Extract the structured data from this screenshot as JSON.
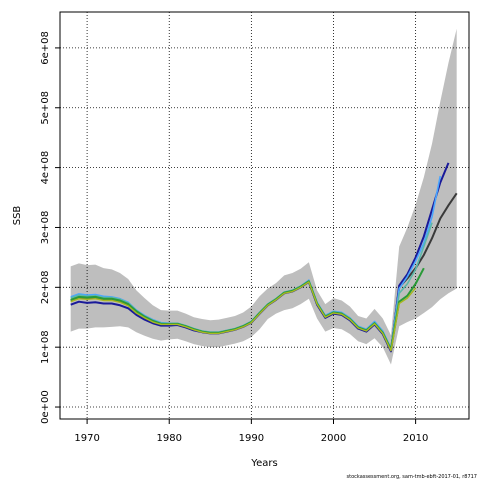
{
  "chart_data": {
    "type": "line",
    "title": "",
    "xlabel": "Years",
    "ylabel": "SSB",
    "xlim": [
      1966.7,
      2016.5
    ],
    "ylim": [
      -20000000,
      660000000
    ],
    "x_ticks": [
      1970,
      1980,
      1990,
      2000,
      2010
    ],
    "x_tick_labels": [
      "1970",
      "1980",
      "1990",
      "2000",
      "2010"
    ],
    "y_ticks": [
      0,
      100000000,
      200000000,
      300000000,
      400000000,
      500000000,
      600000000
    ],
    "y_tick_labels": [
      "0e+00",
      "1e+08",
      "2e+08",
      "3e+08",
      "4e+08",
      "5e+08",
      "6e+08"
    ],
    "grid": true,
    "grid_style": "dotted",
    "band": {
      "color": "#bebebe",
      "x": [
        1968,
        1969,
        1970,
        1971,
        1972,
        1973,
        1974,
        1975,
        1976,
        1977,
        1978,
        1979,
        1980,
        1981,
        1982,
        1983,
        1984,
        1985,
        1986,
        1987,
        1988,
        1989,
        1990,
        1991,
        1992,
        1993,
        1994,
        1995,
        1996,
        1997,
        1998,
        1999,
        2000,
        2001,
        2002,
        2003,
        2004,
        2005,
        2006,
        2007,
        2008,
        2009,
        2010,
        2011,
        2012,
        2013,
        2014,
        2015
      ],
      "upper": [
        235000000,
        240000000,
        237000000,
        238000000,
        232000000,
        230000000,
        224000000,
        214000000,
        195000000,
        182000000,
        170000000,
        162000000,
        161000000,
        161000000,
        156000000,
        150000000,
        147000000,
        145000000,
        146000000,
        149000000,
        152000000,
        158000000,
        168000000,
        185000000,
        198000000,
        207000000,
        220000000,
        224000000,
        231000000,
        242000000,
        195000000,
        172000000,
        182000000,
        178000000,
        168000000,
        152000000,
        148000000,
        164000000,
        148000000,
        120000000,
        268000000,
        300000000,
        338000000,
        384000000,
        440000000,
        510000000,
        575000000,
        632000000
      ],
      "lower": [
        126000000,
        131000000,
        131000000,
        133000000,
        133000000,
        134000000,
        135000000,
        133000000,
        125000000,
        119000000,
        114000000,
        111000000,
        113000000,
        114000000,
        110000000,
        105000000,
        102000000,
        100000000,
        100000000,
        103000000,
        106000000,
        110000000,
        117000000,
        130000000,
        147000000,
        156000000,
        162000000,
        165000000,
        172000000,
        181000000,
        148000000,
        126000000,
        132000000,
        130000000,
        122000000,
        110000000,
        105000000,
        115000000,
        100000000,
        71000000,
        135000000,
        142000000,
        148000000,
        157000000,
        167000000,
        180000000,
        190000000,
        198000000
      ]
    },
    "series": [
      {
        "color": "#3a3a3a",
        "width": 2,
        "x": [
          1968,
          1969,
          1970,
          1971,
          1972,
          1973,
          1974,
          1975,
          1976,
          1977,
          1978,
          1979,
          1980,
          1981,
          1982,
          1983,
          1984,
          1985,
          1986,
          1987,
          1988,
          1989,
          1990,
          1991,
          1992,
          1993,
          1994,
          1995,
          1996,
          1997,
          1998,
          1999,
          2000,
          2001,
          2002,
          2003,
          2004,
          2005,
          2006,
          2007,
          2008,
          2009,
          2010,
          2011,
          2012,
          2013,
          2014,
          2015
        ],
        "y": [
          178000000,
          183000000,
          182000000,
          183000000,
          180000000,
          180000000,
          177000000,
          171000000,
          159000000,
          151000000,
          144000000,
          139000000,
          139000000,
          139000000,
          135000000,
          130000000,
          126000000,
          124000000,
          124000000,
          127000000,
          130000000,
          135000000,
          142000000,
          157000000,
          171000000,
          180000000,
          191000000,
          194000000,
          201000000,
          210000000,
          172000000,
          150000000,
          157000000,
          155000000,
          146000000,
          132000000,
          127000000,
          139000000,
          124000000,
          96000000,
          200000000,
          215000000,
          232000000,
          254000000,
          282000000,
          315000000,
          337000000,
          357000000
        ]
      },
      {
        "color": "#1a1a9a",
        "width": 2,
        "x": [
          1968,
          1969,
          1970,
          1971,
          1972,
          1973,
          1974,
          1975,
          1976,
          1977,
          1978,
          1979,
          1980,
          1981,
          1982,
          1983,
          1984,
          1985,
          1986,
          1987,
          1988,
          1989,
          1990,
          1991,
          1992,
          1993,
          1994,
          1995,
          1996,
          1997,
          1998,
          1999,
          2000,
          2001,
          2002,
          2003,
          2004,
          2005,
          2006,
          2007,
          2008,
          2009,
          2010,
          2011,
          2012,
          2013,
          2014
        ],
        "y": [
          171000000,
          176000000,
          174000000,
          175000000,
          173000000,
          173000000,
          170000000,
          165000000,
          154000000,
          146000000,
          140000000,
          136000000,
          136000000,
          137000000,
          133000000,
          128000000,
          125000000,
          123000000,
          123000000,
          126000000,
          129000000,
          134000000,
          141000000,
          156000000,
          170000000,
          179000000,
          190000000,
          193000000,
          200000000,
          209000000,
          171000000,
          149000000,
          156000000,
          154000000,
          145000000,
          131000000,
          126000000,
          138000000,
          122000000,
          93000000,
          203000000,
          222000000,
          250000000,
          285000000,
          330000000,
          375000000,
          408000000
        ]
      },
      {
        "color": "#4aa6ff",
        "width": 1.6,
        "x": [
          1968,
          1969,
          1970,
          1971,
          1972,
          1973,
          1974,
          1975,
          1976,
          1977,
          1978,
          1979,
          1980,
          1981,
          1982,
          1983,
          1984,
          1985,
          1986,
          1987,
          1988,
          1989,
          1990,
          1991,
          1992,
          1993,
          1994,
          1995,
          1996,
          1997,
          1998,
          1999,
          2000,
          2001,
          2002,
          2003,
          2004,
          2005,
          2006,
          2007,
          2008,
          2009,
          2010,
          2011,
          2012,
          2013
        ],
        "y": [
          184000000,
          189000000,
          187000000,
          188000000,
          185000000,
          184000000,
          181000000,
          175000000,
          162000000,
          153000000,
          146000000,
          141000000,
          140000000,
          140000000,
          136000000,
          131000000,
          127000000,
          125000000,
          125000000,
          128000000,
          131000000,
          136000000,
          143000000,
          158000000,
          172000000,
          181000000,
          192000000,
          195000000,
          202000000,
          212000000,
          175000000,
          153000000,
          160000000,
          158000000,
          149000000,
          135000000,
          130000000,
          143000000,
          127000000,
          98000000,
          198000000,
          218000000,
          244000000,
          274000000,
          318000000,
          386000000
        ]
      },
      {
        "color": "#5cb8a8",
        "width": 1.6,
        "x": [
          1968,
          1969,
          1970,
          1971,
          1972,
          1973,
          1974,
          1975,
          1976,
          1977,
          1978,
          1979,
          1980,
          1981,
          1982,
          1983,
          1984,
          1985,
          1986,
          1987,
          1988,
          1989,
          1990,
          1991,
          1992,
          1993,
          1994,
          1995,
          1996,
          1997,
          1998,
          1999,
          2000,
          2001,
          2002,
          2003,
          2004,
          2005,
          2006,
          2007,
          2008,
          2009,
          2010,
          2011,
          2012
        ],
        "y": [
          182000000,
          187000000,
          185000000,
          186000000,
          183000000,
          183000000,
          180000000,
          174000000,
          161000000,
          152000000,
          145000000,
          140000000,
          139000000,
          140000000,
          136000000,
          131000000,
          127000000,
          125000000,
          125000000,
          128000000,
          131000000,
          136000000,
          143000000,
          158000000,
          172000000,
          181000000,
          192000000,
          195000000,
          202000000,
          211000000,
          174000000,
          152000000,
          159000000,
          157000000,
          148000000,
          134000000,
          129000000,
          141000000,
          125000000,
          97000000,
          190000000,
          206000000,
          230000000,
          268000000,
          308000000
        ]
      },
      {
        "color": "#2a9a38",
        "width": 2,
        "x": [
          1968,
          1969,
          1970,
          1971,
          1972,
          1973,
          1974,
          1975,
          1976,
          1977,
          1978,
          1979,
          1980,
          1981,
          1982,
          1983,
          1984,
          1985,
          1986,
          1987,
          1988,
          1989,
          1990,
          1991,
          1992,
          1993,
          1994,
          1995,
          1996,
          1997,
          1998,
          1999,
          2000,
          2001,
          2002,
          2003,
          2004,
          2005,
          2006,
          2007,
          2008,
          2009,
          2010,
          2011
        ],
        "y": [
          179000000,
          184000000,
          183000000,
          184000000,
          181000000,
          181000000,
          178000000,
          172000000,
          160000000,
          151000000,
          144000000,
          139000000,
          139000000,
          139000000,
          135000000,
          130000000,
          126000000,
          124000000,
          124000000,
          127000000,
          130000000,
          135000000,
          142000000,
          157000000,
          171000000,
          180000000,
          191000000,
          194000000,
          201000000,
          210000000,
          173000000,
          151000000,
          158000000,
          156000000,
          147000000,
          133000000,
          128000000,
          140000000,
          124000000,
          96000000,
          176000000,
          186000000,
          206000000,
          232000000
        ]
      },
      {
        "color": "#a8b820",
        "width": 1.4,
        "x": [
          1968,
          1969,
          1970,
          1971,
          1972,
          1973,
          1974,
          1975,
          1976,
          1977,
          1978,
          1979,
          1980,
          1981,
          1982,
          1983,
          1984,
          1985,
          1986,
          1987,
          1988,
          1989,
          1990,
          1991,
          1992,
          1993,
          1994,
          1995,
          1996,
          1997,
          1998,
          1999,
          2000,
          2001,
          2002,
          2003,
          2004,
          2005,
          2006,
          2007,
          2008,
          2009,
          2010
        ],
        "y": [
          176000000,
          181000000,
          180000000,
          181000000,
          178000000,
          178000000,
          175000000,
          169000000,
          157000000,
          149000000,
          142000000,
          138000000,
          138000000,
          138000000,
          134000000,
          129000000,
          125000000,
          123000000,
          123000000,
          126000000,
          129000000,
          134000000,
          141000000,
          156000000,
          170000000,
          179000000,
          190000000,
          193000000,
          200000000,
          209000000,
          172000000,
          150000000,
          157000000,
          155000000,
          146000000,
          132000000,
          127000000,
          139000000,
          123000000,
          94000000,
          173000000,
          182000000,
          199000000
        ]
      }
    ],
    "credit": "stockassessment.org, sam-tmb-ebft-2017-01, r8717"
  }
}
